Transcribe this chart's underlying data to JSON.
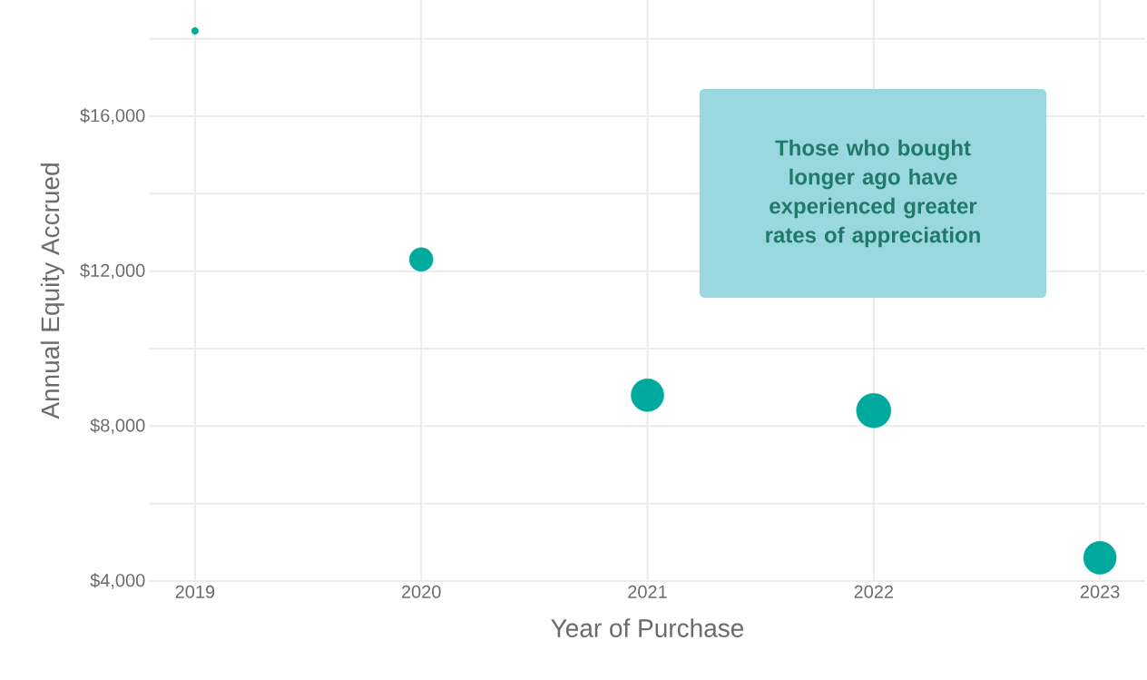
{
  "chart_data": {
    "type": "bubble",
    "xlabel": "Year of Purchase",
    "ylabel": "Annual Equity Accrued",
    "x": [
      2019,
      2020,
      2021,
      2022,
      2023
    ],
    "values": [
      18200,
      12300,
      8800,
      8400,
      4600
    ],
    "sizes": [
      0.04,
      0.47,
      0.9,
      1,
      0.9
    ],
    "color": "#00a99d",
    "xlim": [
      2018.8,
      2023.2
    ],
    "ylim": [
      4000,
      19000
    ],
    "xticks": [
      2019,
      2020,
      2021,
      2022,
      2023
    ],
    "yticks": [
      {
        "value": 4000,
        "label": "$4,000"
      },
      {
        "value": 6000,
        "label": null
      },
      {
        "value": 8000,
        "label": "$8,000"
      },
      {
        "value": 10000,
        "label": null
      },
      {
        "value": 12000,
        "label": "$12,000"
      },
      {
        "value": 14000,
        "label": null
      },
      {
        "value": 16000,
        "label": "$16,000"
      },
      {
        "value": 18000,
        "label": null
      }
    ],
    "grid": true,
    "annotations": [
      "Those who bought longer ago have experienced greater rates of appreciation"
    ]
  }
}
